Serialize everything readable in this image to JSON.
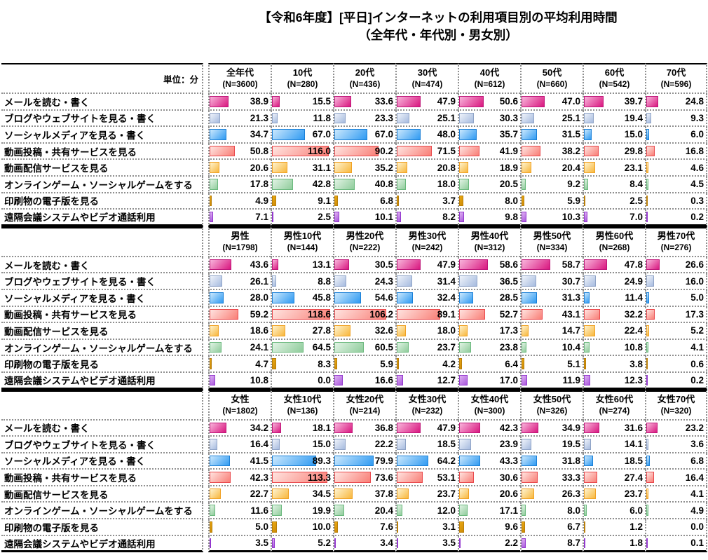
{
  "title": {
    "line1": "【令和6年度】[平日]インターネットの利用項目別の平均利用時間",
    "line2": "（全年代・年代別・男女別）"
  },
  "unit_label": "単位：分",
  "categories": [
    {
      "key": "mail",
      "label": "メールを読む・書く"
    },
    {
      "key": "blog",
      "label": "ブログやウェブサイトを見る・書く"
    },
    {
      "key": "social",
      "label": "ソーシャルメディアを見る・書く"
    },
    {
      "key": "video_share",
      "label": "動画投稿・共有サービスを見る"
    },
    {
      "key": "video_stream",
      "label": "動画配信サービスを見る"
    },
    {
      "key": "game",
      "label": "オンラインゲーム・ソーシャルゲームをする"
    },
    {
      "key": "print",
      "label": "印刷物の電子版を見る"
    },
    {
      "key": "conference",
      "label": "遠隔会議システムやビデオ通話利用"
    }
  ],
  "colors": {
    "mail": {
      "light": "#F8B4DB",
      "dark": "#D9177F",
      "border": "#BE1578"
    },
    "blog": {
      "light": "#EFF3FA",
      "dark": "#A6BBDF",
      "border": "#8FA3C6"
    },
    "social": {
      "light": "#CBE8FD",
      "dark": "#2F9AF2",
      "border": "#1A7FD6"
    },
    "video_share": {
      "light": "#FFE4E0",
      "dark": "#F97E76",
      "border": "#E9484C"
    },
    "video_stream": {
      "light": "#FEF3CF",
      "dark": "#F8B73C",
      "border": "#F0A124"
    },
    "game": {
      "light": "#E2F3E5",
      "dark": "#8FCC9B",
      "border": "#6AB87D"
    },
    "print": {
      "light": "#E8A712",
      "dark": "#CE8C08",
      "border": "#B97E08"
    },
    "conference": {
      "light": "#DFB2F1",
      "dark": "#A958DD",
      "border": "#9338CE"
    }
  },
  "chart_data": {
    "type": "bar",
    "orientation": "horizontal",
    "value_unit": "分",
    "title": "【令和6年度】[平日]インターネットの利用項目別の平均利用時間（全年代・年代別・男女別）",
    "sections": [
      {
        "key": "all",
        "columns": [
          {
            "label": "全年代",
            "n": "(N=3600)"
          },
          {
            "label": "10代",
            "n": "(N=280)"
          },
          {
            "label": "20代",
            "n": "(N=436)"
          },
          {
            "label": "30代",
            "n": "(N=474)"
          },
          {
            "label": "40代",
            "n": "(N=612)"
          },
          {
            "label": "50代",
            "n": "(N=660)"
          },
          {
            "label": "60代",
            "n": "(N=542)"
          },
          {
            "label": "70代",
            "n": "(N=596)"
          }
        ],
        "rows": [
          {
            "category": "mail",
            "values": [
              38.9,
              15.5,
              33.6,
              47.9,
              50.6,
              47.0,
              39.7,
              24.8
            ]
          },
          {
            "category": "blog",
            "values": [
              21.3,
              11.8,
              23.3,
              25.1,
              30.3,
              25.1,
              19.4,
              9.3
            ]
          },
          {
            "category": "social",
            "values": [
              34.7,
              67.0,
              67.0,
              48.0,
              35.7,
              31.5,
              15.0,
              6.0
            ]
          },
          {
            "category": "video_share",
            "values": [
              50.8,
              116.0,
              90.2,
              71.5,
              41.9,
              38.2,
              29.8,
              16.8
            ]
          },
          {
            "category": "video_stream",
            "values": [
              20.6,
              31.1,
              35.2,
              20.8,
              18.9,
              20.4,
              23.1,
              4.6
            ]
          },
          {
            "category": "game",
            "values": [
              17.8,
              42.8,
              40.8,
              18.0,
              20.5,
              9.2,
              8.4,
              4.5
            ]
          },
          {
            "category": "print",
            "values": [
              4.9,
              9.1,
              6.8,
              3.7,
              8.0,
              5.9,
              2.5,
              0.3
            ]
          },
          {
            "category": "conference",
            "values": [
              7.1,
              2.5,
              10.1,
              8.2,
              9.8,
              10.3,
              7.0,
              0.2
            ]
          }
        ]
      },
      {
        "key": "male",
        "columns": [
          {
            "label": "男性",
            "n": "(N=1798)"
          },
          {
            "label": "男性10代",
            "n": "(N=144)"
          },
          {
            "label": "男性20代",
            "n": "(N=222)"
          },
          {
            "label": "男性30代",
            "n": "(N=242)"
          },
          {
            "label": "男性40代",
            "n": "(N=312)"
          },
          {
            "label": "男性50代",
            "n": "(N=334)"
          },
          {
            "label": "男性60代",
            "n": "(N=268)"
          },
          {
            "label": "男性70代",
            "n": "(N=276)"
          }
        ],
        "rows": [
          {
            "category": "mail",
            "values": [
              43.6,
              13.1,
              30.5,
              47.9,
              58.6,
              58.7,
              47.8,
              26.6
            ]
          },
          {
            "category": "blog",
            "values": [
              26.1,
              8.8,
              24.3,
              31.4,
              36.5,
              30.7,
              24.9,
              16.0
            ]
          },
          {
            "category": "social",
            "values": [
              28.0,
              45.8,
              54.6,
              32.4,
              28.5,
              31.3,
              11.4,
              5.0
            ]
          },
          {
            "category": "video_share",
            "values": [
              59.2,
              118.6,
              106.2,
              89.1,
              52.7,
              43.1,
              32.2,
              17.3
            ]
          },
          {
            "category": "video_stream",
            "values": [
              18.6,
              27.8,
              32.6,
              18.0,
              17.3,
              14.7,
              22.4,
              5.2
            ]
          },
          {
            "category": "game",
            "values": [
              24.1,
              64.5,
              60.5,
              23.7,
              23.8,
              10.4,
              10.8,
              4.1
            ]
          },
          {
            "category": "print",
            "values": [
              4.7,
              8.3,
              5.9,
              4.2,
              6.4,
              5.1,
              3.8,
              0.6
            ]
          },
          {
            "category": "conference",
            "values": [
              10.8,
              0.0,
              16.6,
              12.7,
              17.0,
              11.9,
              12.3,
              0.2
            ]
          }
        ]
      },
      {
        "key": "female",
        "columns": [
          {
            "label": "女性",
            "n": "(N=1802)"
          },
          {
            "label": "女性10代",
            "n": "(N=136)"
          },
          {
            "label": "女性20代",
            "n": "(N=214)"
          },
          {
            "label": "女性30代",
            "n": "(N=232)"
          },
          {
            "label": "女性40代",
            "n": "(N=300)"
          },
          {
            "label": "女性50代",
            "n": "(N=326)"
          },
          {
            "label": "女性60代",
            "n": "(N=274)"
          },
          {
            "label": "女性70代",
            "n": "(N=320)"
          }
        ],
        "rows": [
          {
            "category": "mail",
            "values": [
              34.2,
              18.1,
              36.8,
              47.9,
              42.3,
              34.9,
              31.6,
              23.2
            ]
          },
          {
            "category": "blog",
            "values": [
              16.4,
              15.0,
              22.2,
              18.5,
              23.9,
              19.5,
              14.1,
              3.6
            ]
          },
          {
            "category": "social",
            "values": [
              41.5,
              89.3,
              79.9,
              64.2,
              43.3,
              31.8,
              18.5,
              6.8
            ]
          },
          {
            "category": "video_share",
            "values": [
              42.3,
              113.3,
              73.6,
              53.1,
              30.6,
              33.3,
              27.4,
              16.4
            ]
          },
          {
            "category": "video_stream",
            "values": [
              22.7,
              34.5,
              37.8,
              23.7,
              20.6,
              26.3,
              23.7,
              4.1
            ]
          },
          {
            "category": "game",
            "values": [
              11.6,
              19.9,
              20.4,
              12.0,
              17.1,
              8.0,
              6.0,
              4.9
            ]
          },
          {
            "category": "print",
            "values": [
              5.0,
              10.0,
              7.6,
              3.1,
              9.6,
              6.7,
              1.2,
              0.0
            ]
          },
          {
            "category": "conference",
            "values": [
              3.5,
              5.2,
              3.4,
              3.5,
              2.2,
              8.7,
              1.8,
              0.1
            ]
          }
        ]
      }
    ]
  }
}
